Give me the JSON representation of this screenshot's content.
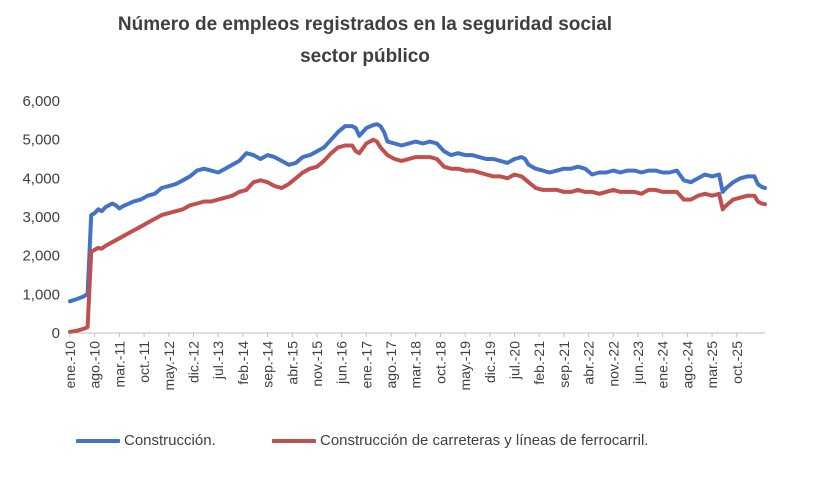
{
  "chart_data": {
    "type": "line",
    "title": "Número de empleos registrados en la seguridad social",
    "subtitle": "sector público",
    "xlabel": "",
    "ylabel": "",
    "ylim": [
      0,
      6000
    ],
    "y_ticks": [
      "0",
      "1,000",
      "2,000",
      "3,000",
      "4,000",
      "5,000",
      "6,000"
    ],
    "x_tick_labels": [
      "ene.-10",
      "ago.-10",
      "mar.-11",
      "oct.-11",
      "may.-12",
      "dic.-12",
      "jul.-13",
      "feb.-14",
      "sep.-14",
      "abr.-15",
      "nov.-15",
      "jun.-16",
      "ene.-17",
      "ago.-17",
      "mar.-18",
      "oct.-18",
      "may.-19",
      "dic.-19",
      "jul.-20",
      "feb.-21",
      "sep.-21",
      "abr.-22",
      "nov.-22",
      "jun.-23",
      "ene.-24",
      "ago.-24",
      "mar.-25",
      "oct.-25"
    ],
    "x_index_range": [
      0,
      190
    ],
    "grid": false,
    "legend_position": "bottom",
    "series": [
      {
        "name": "Construcción.",
        "color": "#4472C4",
        "points": [
          [
            0,
            820
          ],
          [
            2,
            880
          ],
          [
            4,
            950
          ],
          [
            5,
            1020
          ],
          [
            6,
            3050
          ],
          [
            7,
            3100
          ],
          [
            8,
            3200
          ],
          [
            9,
            3150
          ],
          [
            10,
            3250
          ],
          [
            12,
            3350
          ],
          [
            13,
            3300
          ],
          [
            14,
            3220
          ],
          [
            15,
            3280
          ],
          [
            18,
            3400
          ],
          [
            20,
            3450
          ],
          [
            22,
            3550
          ],
          [
            24,
            3600
          ],
          [
            26,
            3750
          ],
          [
            28,
            3800
          ],
          [
            30,
            3850
          ],
          [
            32,
            3950
          ],
          [
            34,
            4050
          ],
          [
            36,
            4200
          ],
          [
            38,
            4250
          ],
          [
            40,
            4200
          ],
          [
            42,
            4150
          ],
          [
            44,
            4250
          ],
          [
            46,
            4350
          ],
          [
            48,
            4450
          ],
          [
            50,
            4650
          ],
          [
            52,
            4600
          ],
          [
            54,
            4500
          ],
          [
            56,
            4600
          ],
          [
            58,
            4550
          ],
          [
            60,
            4450
          ],
          [
            62,
            4350
          ],
          [
            64,
            4400
          ],
          [
            66,
            4550
          ],
          [
            68,
            4600
          ],
          [
            70,
            4700
          ],
          [
            72,
            4800
          ],
          [
            74,
            5000
          ],
          [
            76,
            5200
          ],
          [
            78,
            5350
          ],
          [
            80,
            5350
          ],
          [
            81,
            5300
          ],
          [
            82,
            5100
          ],
          [
            84,
            5300
          ],
          [
            86,
            5380
          ],
          [
            87,
            5400
          ],
          [
            88,
            5350
          ],
          [
            89,
            5200
          ],
          [
            90,
            4950
          ],
          [
            92,
            4900
          ],
          [
            94,
            4850
          ],
          [
            96,
            4900
          ],
          [
            98,
            4950
          ],
          [
            100,
            4900
          ],
          [
            102,
            4950
          ],
          [
            104,
            4900
          ],
          [
            106,
            4700
          ],
          [
            108,
            4600
          ],
          [
            110,
            4650
          ],
          [
            112,
            4600
          ],
          [
            114,
            4600
          ],
          [
            116,
            4550
          ],
          [
            118,
            4500
          ],
          [
            120,
            4500
          ],
          [
            122,
            4450
          ],
          [
            124,
            4400
          ],
          [
            126,
            4500
          ],
          [
            128,
            4550
          ],
          [
            129,
            4500
          ],
          [
            130,
            4350
          ],
          [
            132,
            4250
          ],
          [
            134,
            4200
          ],
          [
            136,
            4150
          ],
          [
            138,
            4200
          ],
          [
            140,
            4250
          ],
          [
            142,
            4250
          ],
          [
            144,
            4300
          ],
          [
            146,
            4250
          ],
          [
            148,
            4100
          ],
          [
            150,
            4150
          ],
          [
            152,
            4150
          ],
          [
            154,
            4200
          ],
          [
            156,
            4150
          ],
          [
            158,
            4200
          ],
          [
            160,
            4200
          ],
          [
            162,
            4150
          ],
          [
            164,
            4200
          ],
          [
            166,
            4200
          ],
          [
            168,
            4150
          ],
          [
            170,
            4150
          ],
          [
            172,
            4200
          ],
          [
            174,
            3950
          ],
          [
            176,
            3900
          ],
          [
            178,
            4000
          ],
          [
            180,
            4100
          ],
          [
            182,
            4050
          ],
          [
            184,
            4100
          ],
          [
            185,
            3650
          ],
          [
            186,
            3750
          ],
          [
            188,
            3900
          ],
          [
            190,
            4000
          ],
          [
            192,
            4050
          ],
          [
            194,
            4050
          ],
          [
            195,
            3850
          ],
          [
            196,
            3780
          ],
          [
            197,
            3750
          ]
        ]
      },
      {
        "name": "Construcción de carreteras y líneas de ferrocarril.",
        "color": "#C0504D",
        "points": [
          [
            0,
            30
          ],
          [
            2,
            60
          ],
          [
            4,
            110
          ],
          [
            5,
            150
          ],
          [
            6,
            2100
          ],
          [
            7,
            2150
          ],
          [
            8,
            2200
          ],
          [
            9,
            2180
          ],
          [
            10,
            2250
          ],
          [
            12,
            2350
          ],
          [
            14,
            2450
          ],
          [
            16,
            2550
          ],
          [
            18,
            2650
          ],
          [
            20,
            2750
          ],
          [
            22,
            2850
          ],
          [
            24,
            2950
          ],
          [
            26,
            3050
          ],
          [
            28,
            3100
          ],
          [
            30,
            3150
          ],
          [
            32,
            3200
          ],
          [
            34,
            3300
          ],
          [
            36,
            3350
          ],
          [
            38,
            3400
          ],
          [
            40,
            3400
          ],
          [
            42,
            3450
          ],
          [
            44,
            3500
          ],
          [
            46,
            3550
          ],
          [
            48,
            3650
          ],
          [
            50,
            3700
          ],
          [
            52,
            3900
          ],
          [
            54,
            3950
          ],
          [
            56,
            3900
          ],
          [
            58,
            3800
          ],
          [
            60,
            3750
          ],
          [
            62,
            3850
          ],
          [
            64,
            4000
          ],
          [
            66,
            4150
          ],
          [
            68,
            4250
          ],
          [
            70,
            4300
          ],
          [
            72,
            4450
          ],
          [
            74,
            4650
          ],
          [
            76,
            4800
          ],
          [
            78,
            4850
          ],
          [
            80,
            4850
          ],
          [
            81,
            4700
          ],
          [
            82,
            4650
          ],
          [
            84,
            4900
          ],
          [
            86,
            5000
          ],
          [
            87,
            4950
          ],
          [
            88,
            4800
          ],
          [
            89,
            4700
          ],
          [
            90,
            4600
          ],
          [
            92,
            4500
          ],
          [
            94,
            4450
          ],
          [
            96,
            4500
          ],
          [
            98,
            4550
          ],
          [
            100,
            4550
          ],
          [
            102,
            4550
          ],
          [
            104,
            4500
          ],
          [
            106,
            4300
          ],
          [
            108,
            4250
          ],
          [
            110,
            4250
          ],
          [
            112,
            4200
          ],
          [
            114,
            4200
          ],
          [
            116,
            4150
          ],
          [
            118,
            4100
          ],
          [
            120,
            4050
          ],
          [
            122,
            4050
          ],
          [
            124,
            4000
          ],
          [
            126,
            4100
          ],
          [
            128,
            4050
          ],
          [
            130,
            3900
          ],
          [
            132,
            3750
          ],
          [
            134,
            3700
          ],
          [
            136,
            3700
          ],
          [
            138,
            3700
          ],
          [
            140,
            3650
          ],
          [
            142,
            3650
          ],
          [
            144,
            3700
          ],
          [
            146,
            3650
          ],
          [
            148,
            3650
          ],
          [
            150,
            3600
          ],
          [
            152,
            3650
          ],
          [
            154,
            3700
          ],
          [
            156,
            3650
          ],
          [
            158,
            3650
          ],
          [
            160,
            3650
          ],
          [
            162,
            3600
          ],
          [
            164,
            3700
          ],
          [
            166,
            3700
          ],
          [
            168,
            3650
          ],
          [
            170,
            3650
          ],
          [
            172,
            3650
          ],
          [
            174,
            3450
          ],
          [
            176,
            3450
          ],
          [
            178,
            3550
          ],
          [
            180,
            3600
          ],
          [
            182,
            3550
          ],
          [
            184,
            3600
          ],
          [
            185,
            3200
          ],
          [
            186,
            3300
          ],
          [
            188,
            3450
          ],
          [
            190,
            3500
          ],
          [
            192,
            3550
          ],
          [
            194,
            3550
          ],
          [
            195,
            3400
          ],
          [
            196,
            3350
          ],
          [
            197,
            3330
          ]
        ]
      }
    ]
  }
}
